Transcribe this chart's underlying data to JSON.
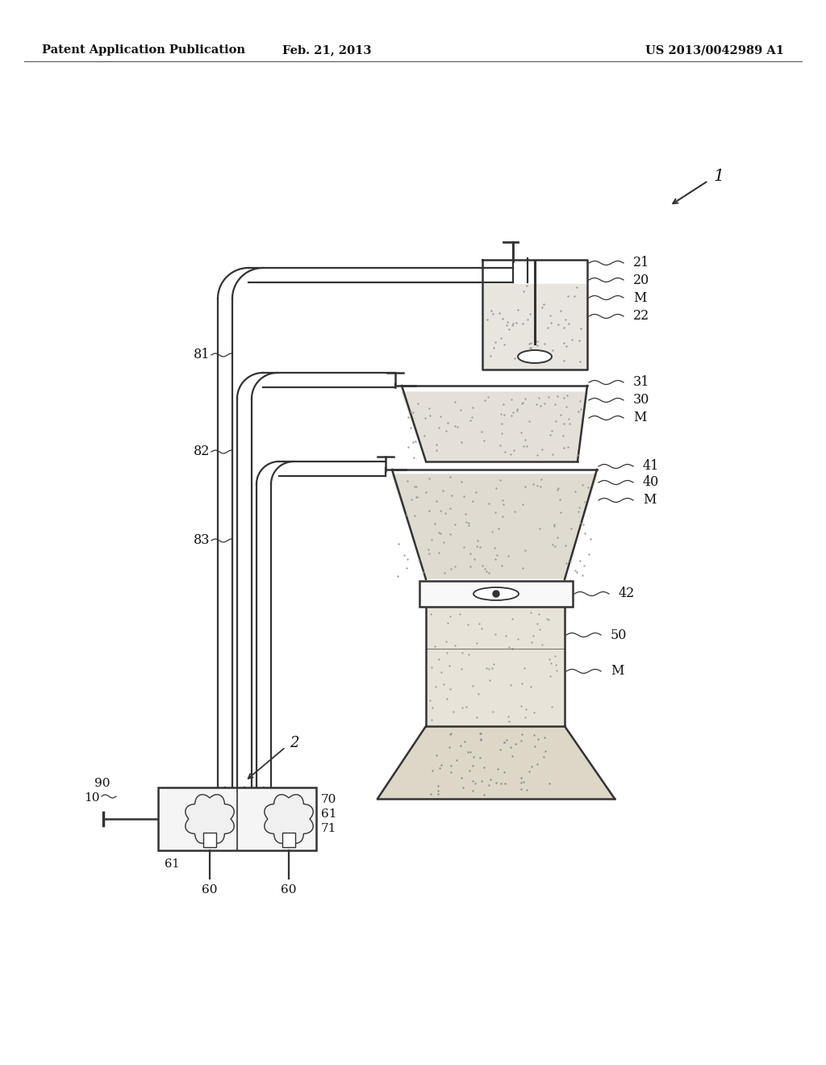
{
  "bg_color": "#ffffff",
  "header_left": "Patent Application Publication",
  "header_mid": "Feb. 21, 2013",
  "header_right": "US 2013/0042989 A1",
  "label_1": "1",
  "label_2": "2",
  "label_10": "10",
  "label_20": "20",
  "label_21": "21",
  "label_22": "22",
  "label_30": "30",
  "label_31": "31",
  "label_40": "40",
  "label_41": "41",
  "label_42": "42",
  "label_50": "50",
  "label_60": "60",
  "label_61": "61",
  "label_70": "70",
  "label_71": "71",
  "label_81": "81",
  "label_82": "82",
  "label_83": "83",
  "label_90": "90",
  "label_M": "M",
  "line_color": "#333333",
  "lw_main": 1.8,
  "lw_pipe": 1.6
}
